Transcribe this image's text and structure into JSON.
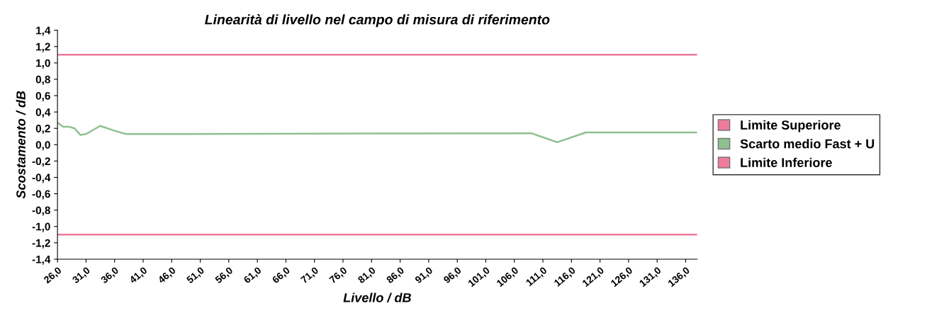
{
  "chart_data": {
    "type": "line",
    "title": "Linearità di livello nel campo di misura di riferimento",
    "xlabel": "Livello / dB",
    "ylabel": "Scostamento / dB",
    "series": [
      {
        "name": "Limite Superiore",
        "color": "#f07a9a",
        "x": [
          26,
          138
        ],
        "values": [
          1.1,
          1.1
        ]
      },
      {
        "name": "Scarto medio Fast + U",
        "color": "#8fc08f",
        "x": [
          26,
          27,
          28,
          29,
          30,
          31,
          33.5,
          36,
          38,
          109,
          113.5,
          118.5,
          138
        ],
        "values": [
          0.27,
          0.22,
          0.22,
          0.2,
          0.12,
          0.13,
          0.23,
          0.17,
          0.13,
          0.14,
          0.03,
          0.15,
          0.15
        ]
      },
      {
        "name": "Limite Inferiore",
        "color": "#f07a9a",
        "x": [
          26,
          138
        ],
        "values": [
          -1.1,
          -1.1
        ]
      }
    ],
    "xlim": [
      26,
      138
    ],
    "xticks": [
      {
        "value": 26,
        "label": "26,0"
      },
      {
        "value": 31,
        "label": "31,0"
      },
      {
        "value": 36,
        "label": "36,0"
      },
      {
        "value": 41,
        "label": "41,0"
      },
      {
        "value": 46,
        "label": "46,0"
      },
      {
        "value": 51,
        "label": "51,0"
      },
      {
        "value": 56,
        "label": "56,0"
      },
      {
        "value": 61,
        "label": "61,0"
      },
      {
        "value": 66,
        "label": "66,0"
      },
      {
        "value": 71,
        "label": "71,0"
      },
      {
        "value": 76,
        "label": "76,0"
      },
      {
        "value": 81,
        "label": "81,0"
      },
      {
        "value": 86,
        "label": "86,0"
      },
      {
        "value": 91,
        "label": "91,0"
      },
      {
        "value": 96,
        "label": "96,0"
      },
      {
        "value": 101,
        "label": "101,0"
      },
      {
        "value": 106,
        "label": "106,0"
      },
      {
        "value": 111,
        "label": "111,0"
      },
      {
        "value": 116,
        "label": "116,0"
      },
      {
        "value": 121,
        "label": "121,0"
      },
      {
        "value": 126,
        "label": "126,0"
      },
      {
        "value": 131,
        "label": "131,0"
      },
      {
        "value": 136,
        "label": "136,0"
      }
    ],
    "ylim": [
      -1.4,
      1.4
    ],
    "yticks": [
      {
        "value": 1.4,
        "label": "1,4"
      },
      {
        "value": 1.2,
        "label": "1,2"
      },
      {
        "value": 1.0,
        "label": "1,0"
      },
      {
        "value": 0.8,
        "label": "0,8"
      },
      {
        "value": 0.6,
        "label": "0,6"
      },
      {
        "value": 0.4,
        "label": "0,4"
      },
      {
        "value": 0.2,
        "label": "0,2"
      },
      {
        "value": 0,
        "label": "0,0"
      },
      {
        "value": -0.2,
        "label": "-0,2"
      },
      {
        "value": -0.4,
        "label": "-0,4"
      },
      {
        "value": -0.6,
        "label": "-0,6"
      },
      {
        "value": -0.8,
        "label": "-0,8"
      },
      {
        "value": -1.0,
        "label": "-1,0"
      },
      {
        "value": -1.2,
        "label": "-1,2"
      },
      {
        "value": -1.4,
        "label": "-1,4"
      }
    ],
    "grid": false,
    "legend": "right",
    "marker": "none",
    "line_style": "solid"
  }
}
